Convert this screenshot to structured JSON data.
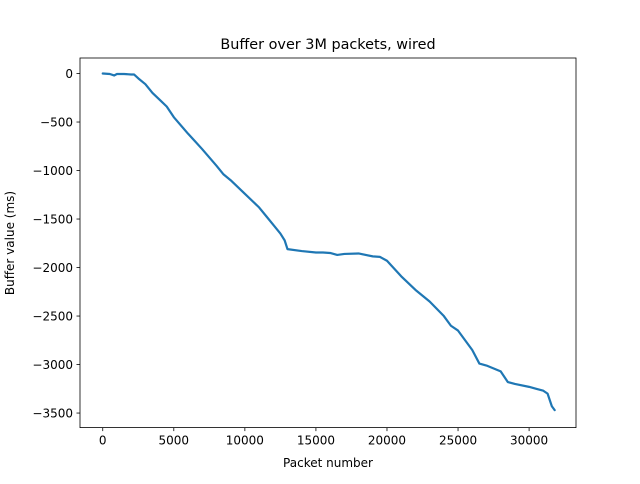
{
  "chart_data": {
    "type": "line",
    "title": "Buffer over 3M packets, wired",
    "xlabel": "Packet number",
    "ylabel": "Buffer value (ms)",
    "xlim": [
      -1600,
      33300
    ],
    "ylim": [
      -3650,
      160
    ],
    "grid": false,
    "x_ticks": [
      0,
      5000,
      10000,
      15000,
      20000,
      25000,
      30000
    ],
    "y_ticks": [
      0,
      -500,
      -1000,
      -1500,
      -2000,
      -2500,
      -3000,
      -3500
    ],
    "x_tick_labels": [
      "0",
      "5000",
      "10000",
      "15000",
      "20000",
      "25000",
      "30000"
    ],
    "y_tick_labels": [
      "0",
      "−500",
      "−1000",
      "−1500",
      "−2000",
      "−2500",
      "−3000",
      "−3500"
    ],
    "line_color": "#1f77b4",
    "series": [
      {
        "x": [
          0,
          500,
          800,
          1000,
          1500,
          2000,
          2200,
          2500,
          3000,
          3500,
          4000,
          4500,
          5000,
          6000,
          6500,
          7000,
          8000,
          8500,
          9000,
          10000,
          11000,
          11500,
          12000,
          12500,
          12800,
          13000,
          14000,
          15000,
          15500,
          16000,
          16500,
          17000,
          18000,
          19000,
          19500,
          20000,
          21000,
          22000,
          23000,
          24000,
          24500,
          25000,
          26000,
          26500,
          27000,
          28000,
          28500,
          29000,
          30000,
          30500,
          31000,
          31300,
          31600,
          31800
        ],
        "y": [
          0,
          -5,
          -20,
          -5,
          -5,
          -10,
          -10,
          -50,
          -110,
          -200,
          -270,
          -340,
          -450,
          -620,
          -700,
          -780,
          -950,
          -1040,
          -1100,
          -1240,
          -1380,
          -1470,
          -1560,
          -1650,
          -1720,
          -1810,
          -1830,
          -1845,
          -1845,
          -1850,
          -1870,
          -1860,
          -1855,
          -1885,
          -1890,
          -1930,
          -2090,
          -2230,
          -2350,
          -2500,
          -2600,
          -2650,
          -2850,
          -2990,
          -3010,
          -3070,
          -3180,
          -3200,
          -3230,
          -3250,
          -3270,
          -3300,
          -3430,
          -3470
        ]
      }
    ]
  }
}
